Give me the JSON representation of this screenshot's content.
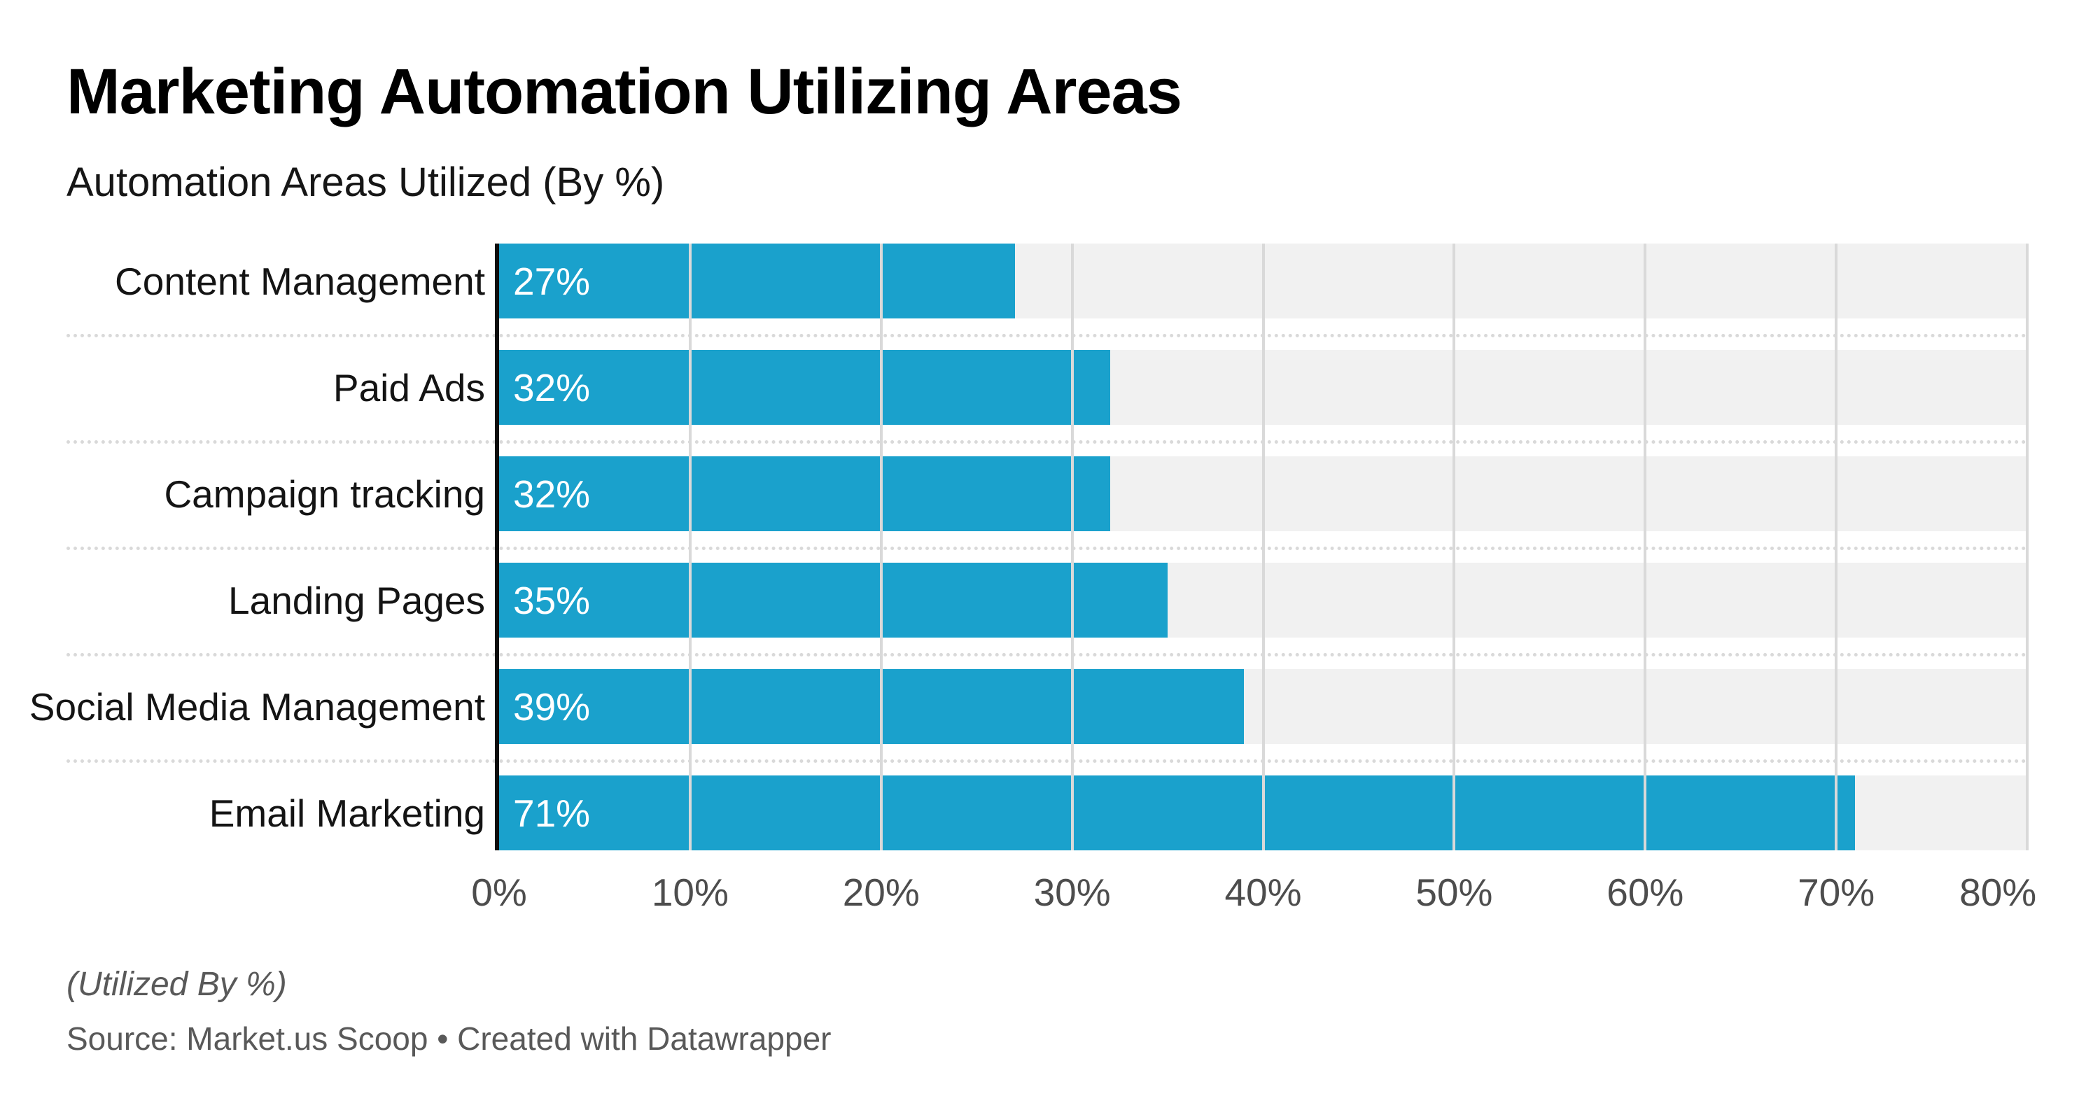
{
  "header": {
    "title": "Marketing Automation Utilizing Areas",
    "subtitle": "Automation Areas Utilized (By %)"
  },
  "chart_data": {
    "type": "bar",
    "orientation": "horizontal",
    "title": "Marketing Automation Utilizing Areas",
    "subtitle": "Automation Areas Utilized (By %)",
    "categories": [
      "Content Management",
      "Paid Ads",
      "Campaign tracking",
      "Landing Pages",
      "Social Media Management",
      "Email Marketing"
    ],
    "values": [
      27,
      32,
      32,
      35,
      39,
      71
    ],
    "value_labels": [
      "27%",
      "32%",
      "32%",
      "35%",
      "39%",
      "71%"
    ],
    "x_ticks": [
      "0%",
      "10%",
      "20%",
      "30%",
      "40%",
      "50%",
      "60%",
      "70%",
      "80%"
    ],
    "xlim": [
      0,
      80
    ],
    "grid": "vertical",
    "legend": "none",
    "bar_color": "#1aa1cc",
    "track_color": "#f1f1f1",
    "axis_line_color": "#0d0d0d",
    "gridline_color": "#d9d9d9"
  },
  "footer": {
    "footnote": "(Utilized By %)",
    "source": "Source: Market.us Scoop • Created with Datawrapper"
  }
}
